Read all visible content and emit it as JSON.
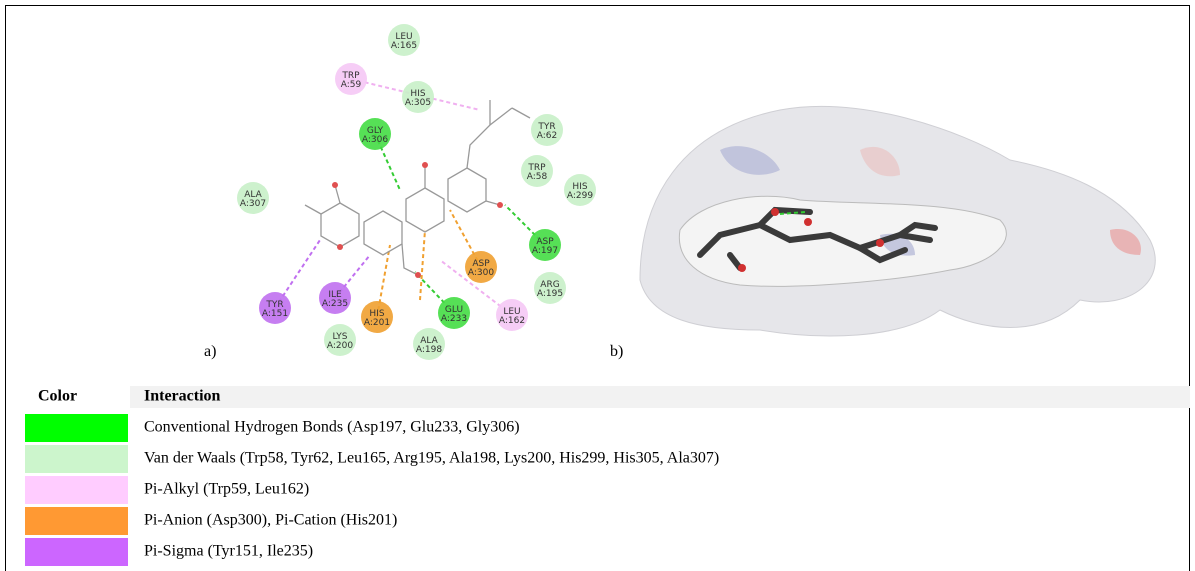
{
  "figure": {
    "panels": {
      "a": "a)",
      "b": "b)"
    },
    "nodes": [
      {
        "residue": "LEU",
        "chain": "A:165",
        "color": "#c8f0c8"
      },
      {
        "residue": "TRP",
        "chain": "A:59",
        "color": "#f5c8f5"
      },
      {
        "residue": "HIS",
        "chain": "A:305",
        "color": "#c8f0c8"
      },
      {
        "residue": "TYR",
        "chain": "A:62",
        "color": "#c8f0c8"
      },
      {
        "residue": "GLY",
        "chain": "A:306",
        "color": "#44dd44"
      },
      {
        "residue": "TRP",
        "chain": "A:58",
        "color": "#c8f0c8"
      },
      {
        "residue": "HIS",
        "chain": "A:299",
        "color": "#c8f0c8"
      },
      {
        "residue": "ALA",
        "chain": "A:307",
        "color": "#c8f0c8"
      },
      {
        "residue": "ASP",
        "chain": "A:197",
        "color": "#44dd44"
      },
      {
        "residue": "ASP",
        "chain": "A:300",
        "color": "#f0a030"
      },
      {
        "residue": "ARG",
        "chain": "A:195",
        "color": "#c8f0c8"
      },
      {
        "residue": "ILE",
        "chain": "A:235",
        "color": "#c070f0"
      },
      {
        "residue": "TYR",
        "chain": "A:151",
        "color": "#c070f0"
      },
      {
        "residue": "LEU",
        "chain": "A:162",
        "color": "#f5c8f5"
      },
      {
        "residue": "HIS",
        "chain": "A:201",
        "color": "#f0a030"
      },
      {
        "residue": "GLU",
        "chain": "A:233",
        "color": "#44dd44"
      },
      {
        "residue": "LYS",
        "chain": "A:200",
        "color": "#c8f0c8"
      },
      {
        "residue": "ALA",
        "chain": "A:198",
        "color": "#c8f0c8"
      }
    ]
  },
  "table": {
    "header": [
      "Color",
      "Interaction"
    ],
    "rows": [
      {
        "color": "#00ff00",
        "interaction": "Conventional Hydrogen Bonds (Asp197, Glu233, Gly306)"
      },
      {
        "color": "#ccf5cc",
        "interaction": "Van der Waals (Trp58, Tyr62, Leu165, Arg195, Ala198, Lys200, His299, His305, Ala307)"
      },
      {
        "color": "#ffccff",
        "interaction": "Pi-Alkyl (Trp59, Leu162)"
      },
      {
        "color": "#ff9933",
        "interaction": "Pi-Anion (Asp300), Pi-Cation (His201)"
      },
      {
        "color": "#cc66ff",
        "interaction": "Pi-Sigma (Tyr151, Ile235)"
      }
    ]
  }
}
